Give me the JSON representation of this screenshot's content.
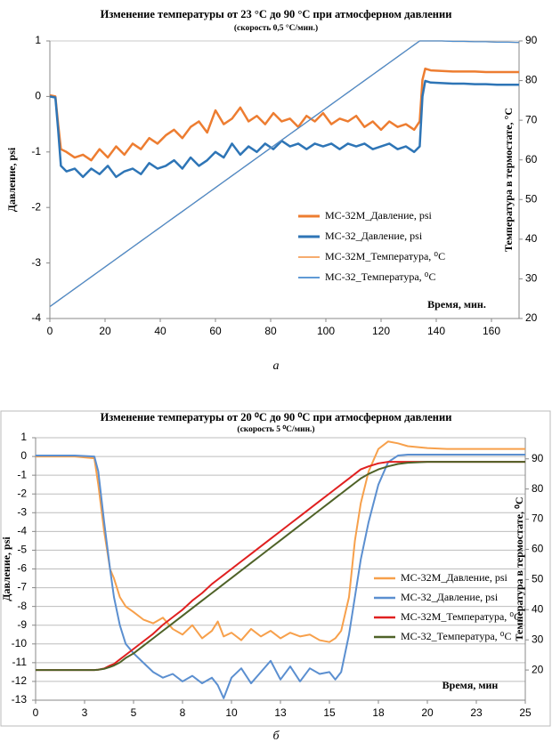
{
  "chart_data": [
    {
      "type": "line",
      "title": "Изменение температуры от 23 °С до 90 °С при атмосферном давлении",
      "subtitle": "(скорость 0,5 °С/мин.)",
      "x_label": "Время, мин.",
      "y_label": "Давление,  psi",
      "y2_label": "Температура в термостате, °С",
      "caption": "а",
      "grid": false,
      "xlim": [
        0,
        170
      ],
      "xticks": [
        0,
        20,
        40,
        60,
        80,
        100,
        120,
        140,
        160
      ],
      "ylim": [
        -4,
        1
      ],
      "yticks": [
        -4,
        -3,
        -2,
        -1,
        0,
        1
      ],
      "y2lim": [
        20,
        90
      ],
      "y2ticks": [
        20,
        30,
        40,
        50,
        60,
        70,
        80,
        90
      ],
      "x": [
        0,
        2,
        3,
        4,
        6,
        9,
        12,
        15,
        18,
        21,
        24,
        27,
        30,
        33,
        36,
        39,
        42,
        45,
        48,
        51,
        54,
        57,
        60,
        63,
        66,
        69,
        72,
        75,
        78,
        81,
        84,
        87,
        90,
        93,
        96,
        99,
        102,
        105,
        108,
        111,
        114,
        117,
        120,
        123,
        126,
        129,
        132,
        134,
        135,
        136,
        138,
        142,
        146,
        150,
        154,
        158,
        162,
        166,
        170
      ],
      "series": [
        {
          "name": "МС-32М_Давление, psi",
          "color": "#ed7d31",
          "axis": "y",
          "values": [
            0.02,
            0.0,
            -0.5,
            -0.95,
            -1.0,
            -1.1,
            -1.05,
            -1.15,
            -0.95,
            -1.1,
            -0.9,
            -1.05,
            -0.85,
            -0.95,
            -0.75,
            -0.85,
            -0.7,
            -0.6,
            -0.75,
            -0.55,
            -0.45,
            -0.65,
            -0.25,
            -0.5,
            -0.4,
            -0.2,
            -0.45,
            -0.35,
            -0.5,
            -0.3,
            -0.45,
            -0.4,
            -0.55,
            -0.35,
            -0.45,
            -0.3,
            -0.5,
            -0.4,
            -0.45,
            -0.35,
            -0.55,
            -0.45,
            -0.6,
            -0.45,
            -0.55,
            -0.5,
            -0.6,
            -0.45,
            0.3,
            0.5,
            0.47,
            0.46,
            0.45,
            0.45,
            0.45,
            0.44,
            0.44,
            0.44,
            0.44
          ]
        },
        {
          "name": "МС-32_Давление, psi",
          "color": "#2e75b6",
          "axis": "y",
          "values": [
            0.0,
            -0.02,
            -0.6,
            -1.25,
            -1.35,
            -1.3,
            -1.45,
            -1.3,
            -1.4,
            -1.25,
            -1.45,
            -1.35,
            -1.3,
            -1.4,
            -1.2,
            -1.3,
            -1.25,
            -1.15,
            -1.3,
            -1.1,
            -1.25,
            -1.15,
            -1.0,
            -1.1,
            -0.85,
            -1.05,
            -0.9,
            -1.0,
            -0.85,
            -0.95,
            -0.8,
            -0.9,
            -0.85,
            -0.95,
            -0.85,
            -0.9,
            -0.85,
            -0.95,
            -0.85,
            -0.9,
            -0.85,
            -0.95,
            -0.9,
            -0.85,
            -0.95,
            -0.9,
            -1.0,
            -0.9,
            0.0,
            0.28,
            0.25,
            0.24,
            0.23,
            0.23,
            0.22,
            0.22,
            0.21,
            0.21,
            0.21
          ]
        },
        {
          "name": "МС-32М_Температура,  ⁰С",
          "color": "#f4a05a",
          "axis": "y2",
          "values": [
            23,
            24,
            24.5,
            25,
            26,
            27.5,
            29,
            30.5,
            32,
            33.5,
            35,
            36.5,
            38,
            39.5,
            41,
            42.5,
            44,
            45.5,
            47,
            48.5,
            50,
            51.5,
            53,
            54.5,
            56,
            57.5,
            59,
            60.5,
            62,
            63.5,
            65,
            66.5,
            68,
            69.5,
            71,
            72.5,
            74,
            75.5,
            77,
            78.5,
            80,
            81.5,
            83,
            84.5,
            86,
            87.5,
            89,
            90,
            90,
            90,
            90,
            90,
            89.9,
            89.9,
            89.8,
            89.8,
            89.7,
            89.7,
            89.6
          ]
        },
        {
          "name": "МС-32_Температура,  ⁰С",
          "color": "#4a8ccf",
          "axis": "y2",
          "values": [
            23,
            24,
            24.5,
            25,
            26,
            27.5,
            29,
            30.5,
            32,
            33.5,
            35,
            36.5,
            38,
            39.5,
            41,
            42.5,
            44,
            45.5,
            47,
            48.5,
            50,
            51.5,
            53,
            54.5,
            56,
            57.5,
            59,
            60.5,
            62,
            63.5,
            65,
            66.5,
            68,
            69.5,
            71,
            72.5,
            74,
            75.5,
            77,
            78.5,
            80,
            81.5,
            83,
            84.5,
            86,
            87.5,
            89,
            90,
            90,
            90,
            90,
            90,
            89.9,
            89.9,
            89.8,
            89.8,
            89.7,
            89.7,
            89.6
          ]
        }
      ]
    },
    {
      "type": "line",
      "title": "Изменение температуры от 20 ⁰С до 90 ⁰С при атмосферном давлении",
      "subtitle": "(скорость  5 ⁰С/мин.)",
      "x_label": "Время, мин",
      "y_label": "Давление, psi",
      "y2_label": "Температура в термостате, ⁰С",
      "caption": "б",
      "grid": true,
      "xlim": [
        0,
        25
      ],
      "xticks": [
        0,
        {
          "value": 2.5,
          "label": "3"
        },
        5,
        {
          "value": 7.5,
          "label": "8"
        },
        10,
        {
          "value": 12.5,
          "label": "13"
        },
        15,
        {
          "value": 17.5,
          "label": "18"
        },
        20,
        {
          "value": 22.5,
          "label": "23"
        },
        25
      ],
      "ylim": [
        -13,
        1
      ],
      "yticks": [
        -13,
        -12,
        -11,
        -10,
        -9,
        -8,
        -7,
        -6,
        -5,
        -4,
        -3,
        -2,
        -1,
        0,
        1
      ],
      "y2lim": [
        10,
        97
      ],
      "y2ticks": [
        20,
        30,
        40,
        50,
        60,
        70,
        80,
        90
      ],
      "x": [
        0,
        1,
        2,
        3,
        3.2,
        3.5,
        3.8,
        4,
        4.3,
        4.6,
        5,
        5.5,
        6,
        6.5,
        7,
        7.5,
        8,
        8.5,
        9,
        9.3,
        9.6,
        10,
        10.5,
        11,
        11.5,
        12,
        12.5,
        13,
        13.5,
        14,
        14.5,
        15,
        15.3,
        15.6,
        16,
        16.3,
        16.6,
        17,
        17.5,
        18,
        18.5,
        19,
        20,
        21,
        22,
        23,
        24,
        25
      ],
      "series": [
        {
          "name": "МС-32М_Давление, psi",
          "color": "#f7a04b",
          "axis": "y",
          "values": [
            0,
            0,
            0,
            -0.1,
            -1.5,
            -4,
            -6,
            -6.5,
            -7.5,
            -8,
            -8.3,
            -8.7,
            -8.9,
            -8.6,
            -9.2,
            -9.5,
            -9.0,
            -9.7,
            -9.3,
            -8.8,
            -9.6,
            -9.4,
            -9.8,
            -9.2,
            -9.6,
            -9.3,
            -9.7,
            -9.4,
            -9.6,
            -9.5,
            -9.8,
            -9.9,
            -9.7,
            -9.3,
            -7.5,
            -4.5,
            -2.5,
            -0.8,
            0.4,
            0.8,
            0.7,
            0.55,
            0.45,
            0.4,
            0.4,
            0.4,
            0.4,
            0.4
          ]
        },
        {
          "name": "МС-32_Давление, psi",
          "color": "#5b8fd0",
          "axis": "y",
          "values": [
            0.05,
            0.05,
            0.05,
            0.0,
            -0.8,
            -3.5,
            -6,
            -7.5,
            -9,
            -10,
            -10.5,
            -11,
            -11.5,
            -11.8,
            -11.6,
            -12,
            -11.7,
            -12.1,
            -11.8,
            -12.2,
            -12.9,
            -11.8,
            -11.3,
            -12.1,
            -11.5,
            -10.9,
            -11.9,
            -11.2,
            -12.0,
            -11.3,
            -11.6,
            -11.5,
            -11.9,
            -11.5,
            -9.5,
            -7.5,
            -5.5,
            -3.5,
            -1.5,
            -0.3,
            0.05,
            0.1,
            0.1,
            0.1,
            0.1,
            0.1,
            0.1,
            0.1
          ]
        },
        {
          "name": "МС-32М_Температура, ⁰С",
          "color": "#e02020",
          "axis": "y2",
          "values": [
            20,
            20,
            20,
            20,
            20.1,
            20.5,
            21.5,
            22,
            23.5,
            25,
            27,
            29.5,
            32,
            35,
            37.5,
            40,
            43,
            45.5,
            48.5,
            50,
            51.5,
            53.5,
            56,
            58.5,
            61,
            63.5,
            66,
            68.5,
            71,
            73.5,
            76,
            78.5,
            80,
            81.5,
            83.5,
            85,
            86.5,
            87.5,
            88.5,
            89,
            89,
            89,
            89,
            89,
            89,
            89,
            89,
            89
          ]
        },
        {
          "name": "МС-32_Температура,  ⁰С",
          "color": "#4f6228",
          "axis": "y2",
          "values": [
            20,
            20,
            20,
            20,
            20.1,
            20.4,
            21,
            21.5,
            22.5,
            24,
            25.5,
            28,
            30.5,
            33,
            35.5,
            38,
            40.5,
            43,
            45.5,
            47,
            48.5,
            50.5,
            53,
            55.5,
            58,
            60.5,
            63,
            65.5,
            68,
            70.5,
            73,
            75.5,
            77,
            78.5,
            80.5,
            82,
            83.5,
            85,
            86.5,
            87.5,
            88.3,
            88.7,
            89,
            89,
            89,
            89,
            89,
            89
          ]
        }
      ]
    }
  ]
}
